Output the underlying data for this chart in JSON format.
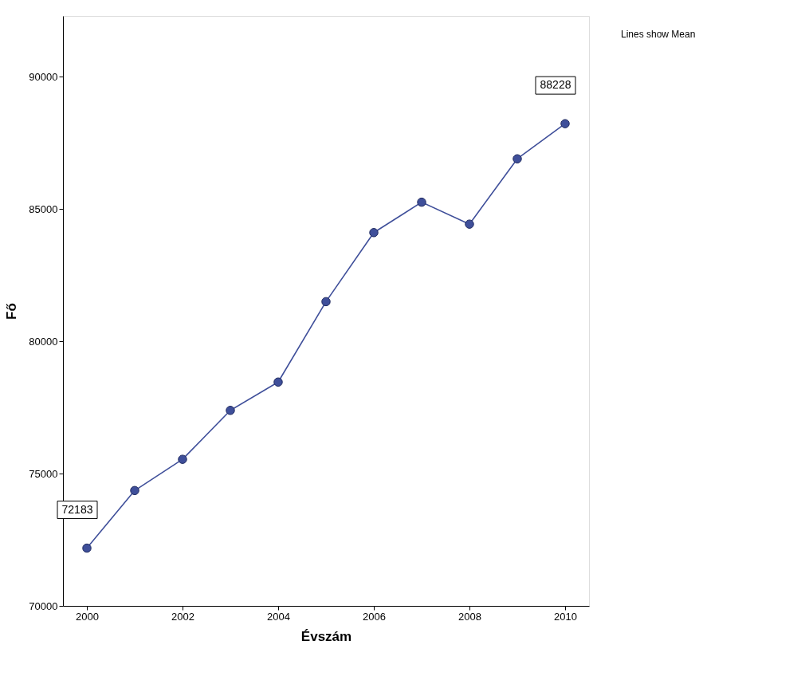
{
  "chart_data": {
    "type": "line",
    "xlabel": "Évszám",
    "ylabel": "Fő",
    "x": [
      2000,
      2001,
      2002,
      2003,
      2004,
      2005,
      2006,
      2007,
      2008,
      2009,
      2010
    ],
    "series": [
      {
        "color": "#3f4f9a",
        "values": [
          72183,
          74360,
          75540,
          77390,
          78460,
          81500,
          84110,
          85260,
          84430,
          86900,
          88228
        ],
        "value_labels": [
          "72183",
          null,
          null,
          null,
          null,
          null,
          null,
          null,
          null,
          null,
          "88228"
        ]
      }
    ],
    "xlim": [
      1999.5,
      2010.5
    ],
    "xticks": [
      2000,
      2002,
      2004,
      2006,
      2008,
      2010
    ],
    "ylim": [
      70000,
      92300
    ],
    "yticks": [
      70000,
      75000,
      80000,
      85000,
      90000
    ],
    "marker": "circle",
    "grid": false,
    "annotations": [
      "Lines show Mean"
    ]
  }
}
